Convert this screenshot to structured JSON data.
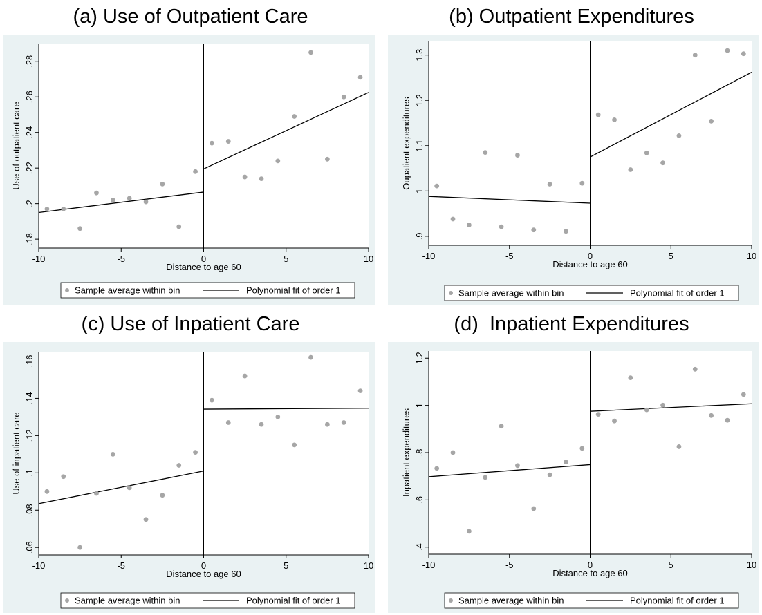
{
  "legend": {
    "scatter_label": "Sample average within bin",
    "line_label": "Polynomial fit of order 1"
  },
  "colors": {
    "outer_bg": "#eaf2f3",
    "plot_bg": "#ffffff",
    "point": "#a6a6a6",
    "line": "#000000"
  },
  "chart_data": [
    {
      "type": "scatter",
      "title": "(a) Use of Outpatient Care",
      "xlabel": "Distance to age 60",
      "ylabel": "Use of outpatient care",
      "xlim": [
        -10,
        10
      ],
      "ylim": [
        0.175,
        0.29
      ],
      "xticks": [
        -10,
        -5,
        0,
        5,
        10
      ],
      "xtick_labels": [
        "-10",
        "-5",
        "0",
        "5",
        "10"
      ],
      "yticks": [
        0.18,
        0.2,
        0.22,
        0.24,
        0.26,
        0.28
      ],
      "ytick_labels": [
        ".18",
        ".2",
        ".22",
        ".24",
        ".26",
        ".28"
      ],
      "cutoff": 0,
      "points": {
        "x": [
          -9.5,
          -8.5,
          -7.5,
          -6.5,
          -5.5,
          -4.5,
          -3.5,
          -2.5,
          -1.5,
          -0.5,
          0.5,
          1.5,
          2.5,
          3.5,
          4.5,
          5.5,
          6.5,
          7.5,
          8.5,
          9.5
        ],
        "y": [
          0.197,
          0.197,
          0.186,
          0.206,
          0.202,
          0.203,
          0.201,
          0.211,
          0.187,
          0.218,
          0.234,
          0.235,
          0.215,
          0.214,
          0.224,
          0.249,
          0.285,
          0.225,
          0.26,
          0.271
        ]
      },
      "fit_lines": [
        {
          "x": [
            -10,
            0
          ],
          "y": [
            0.195,
            0.2065
          ]
        },
        {
          "x": [
            0,
            10
          ],
          "y": [
            0.2195,
            0.2625
          ]
        }
      ]
    },
    {
      "type": "scatter",
      "title": "(b) Outpatient Expenditures",
      "xlabel": "Distance to age 60",
      "ylabel": "Oupatient expenditures",
      "xlim": [
        -10,
        10
      ],
      "ylim": [
        0.88,
        1.33
      ],
      "xticks": [
        -10,
        -5,
        0,
        5,
        10
      ],
      "xtick_labels": [
        "-10",
        "-5",
        "0",
        "5",
        "10"
      ],
      "yticks": [
        0.9,
        1.0,
        1.1,
        1.2,
        1.3
      ],
      "ytick_labels": [
        ".9",
        "1",
        "1.1",
        "1.2",
        "1.3"
      ],
      "cutoff": 0,
      "points": {
        "x": [
          -9.5,
          -8.5,
          -7.5,
          -6.5,
          -5.5,
          -4.5,
          -3.5,
          -2.5,
          -1.5,
          -0.5,
          0.5,
          1.5,
          2.5,
          3.5,
          4.5,
          5.5,
          6.5,
          7.5,
          8.5,
          9.5
        ],
        "y": [
          1.011,
          0.938,
          0.925,
          1.085,
          0.921,
          1.079,
          0.914,
          1.015,
          0.911,
          1.017,
          1.168,
          1.157,
          1.047,
          1.084,
          1.062,
          1.122,
          1.3,
          1.154,
          1.31,
          1.303
        ]
      },
      "fit_lines": [
        {
          "x": [
            -10,
            0
          ],
          "y": [
            0.988,
            0.973
          ]
        },
        {
          "x": [
            0,
            10
          ],
          "y": [
            1.075,
            1.262
          ]
        }
      ]
    },
    {
      "type": "scatter",
      "title": "(c) Use of Inpatient Care",
      "xlabel": "Distance to age 60",
      "ylabel": "Use of inpatient care",
      "xlim": [
        -10,
        10
      ],
      "ylim": [
        0.056,
        0.165
      ],
      "xticks": [
        -10,
        -5,
        0,
        5,
        10
      ],
      "xtick_labels": [
        "-10",
        "-5",
        "0",
        "5",
        "10"
      ],
      "yticks": [
        0.06,
        0.08,
        0.1,
        0.12,
        0.14,
        0.16
      ],
      "ytick_labels": [
        ".06",
        ".08",
        ".1",
        ".12",
        ".14",
        ".16"
      ],
      "cutoff": 0,
      "points": {
        "x": [
          -9.5,
          -8.5,
          -7.5,
          -6.5,
          -5.5,
          -4.5,
          -3.5,
          -2.5,
          -1.5,
          -0.5,
          0.5,
          1.5,
          2.5,
          3.5,
          4.5,
          5.5,
          6.5,
          7.5,
          8.5,
          9.5
        ],
        "y": [
          0.09,
          0.098,
          0.06,
          0.089,
          0.11,
          0.092,
          0.075,
          0.088,
          0.104,
          0.111,
          0.139,
          0.127,
          0.152,
          0.126,
          0.13,
          0.115,
          0.162,
          0.126,
          0.127,
          0.144
        ]
      },
      "fit_lines": [
        {
          "x": [
            -10,
            0
          ],
          "y": [
            0.0835,
            0.101
          ]
        },
        {
          "x": [
            0,
            10
          ],
          "y": [
            0.1342,
            0.1347
          ]
        }
      ]
    },
    {
      "type": "scatter",
      "title": "(d)  Inpatient Expenditures",
      "xlabel": "Distance to age 60",
      "ylabel": "Inpatient expenditures",
      "xlim": [
        -10,
        10
      ],
      "ylim": [
        0.37,
        1.23
      ],
      "xticks": [
        -10,
        -5,
        0,
        5,
        10
      ],
      "xtick_labels": [
        "-10",
        "-5",
        "0",
        "5",
        "10"
      ],
      "yticks": [
        0.4,
        0.6,
        0.8,
        1.0,
        1.2
      ],
      "ytick_labels": [
        ".4",
        ".6",
        ".8",
        "1",
        "1.2"
      ],
      "cutoff": 0,
      "points": {
        "x": [
          -9.5,
          -8.5,
          -7.5,
          -6.5,
          -5.5,
          -4.5,
          -3.5,
          -2.5,
          -1.5,
          -0.5,
          0.5,
          1.5,
          2.5,
          3.5,
          4.5,
          5.5,
          6.5,
          7.5,
          8.5,
          9.5
        ],
        "y": [
          0.733,
          0.8,
          0.467,
          0.695,
          0.912,
          0.745,
          0.563,
          0.706,
          0.76,
          0.818,
          0.962,
          0.934,
          1.117,
          0.981,
          1.001,
          0.825,
          1.153,
          0.957,
          0.937,
          1.046
        ]
      },
      "fit_lines": [
        {
          "x": [
            -10,
            0
          ],
          "y": [
            0.698,
            0.749
          ]
        },
        {
          "x": [
            0,
            10
          ],
          "y": [
            0.975,
            1.007
          ]
        }
      ]
    }
  ]
}
